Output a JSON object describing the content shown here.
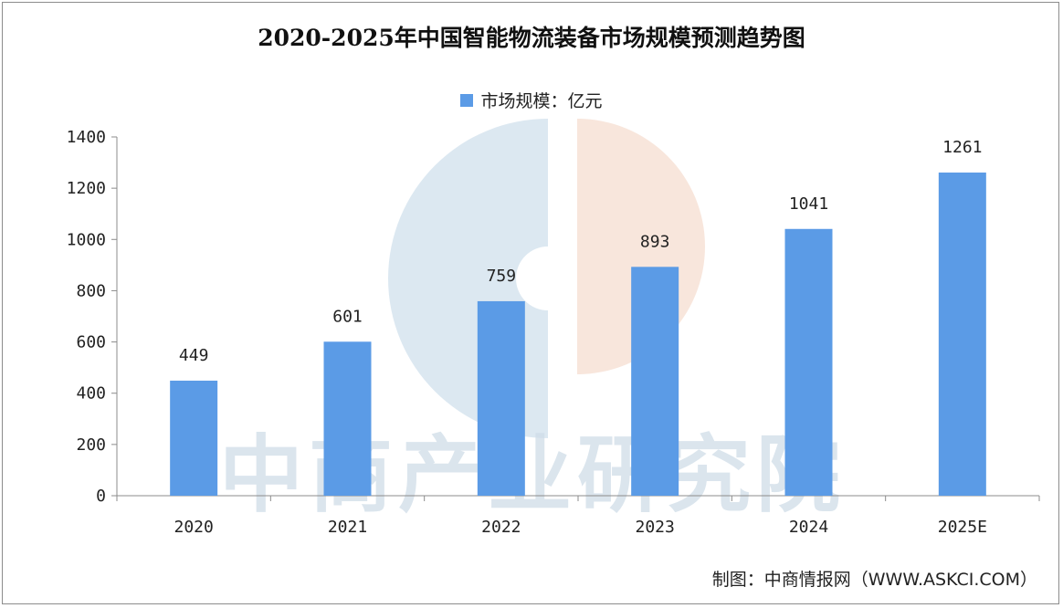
{
  "chart_data": {
    "type": "bar",
    "title": "2020-2025年中国智能物流装备市场规模预测趋势图",
    "categories": [
      "2020",
      "2021",
      "2022",
      "2023",
      "2024",
      "2025E"
    ],
    "series": [
      {
        "name": "市场规模：亿元",
        "values": [
          449,
          601,
          759,
          893,
          1041,
          1261
        ]
      }
    ],
    "ylim": [
      0,
      1400
    ],
    "yticks": [
      0,
      200,
      400,
      600,
      800,
      1000,
      1200,
      1400
    ],
    "xlabel": "",
    "ylabel": "",
    "legend": "top-center",
    "grid": false,
    "bar_color": "#5b9be6"
  },
  "watermark": {
    "text": "中商产业研究院"
  },
  "source": {
    "text": "制图：中商情报网（WWW.ASKCI.COM）"
  }
}
